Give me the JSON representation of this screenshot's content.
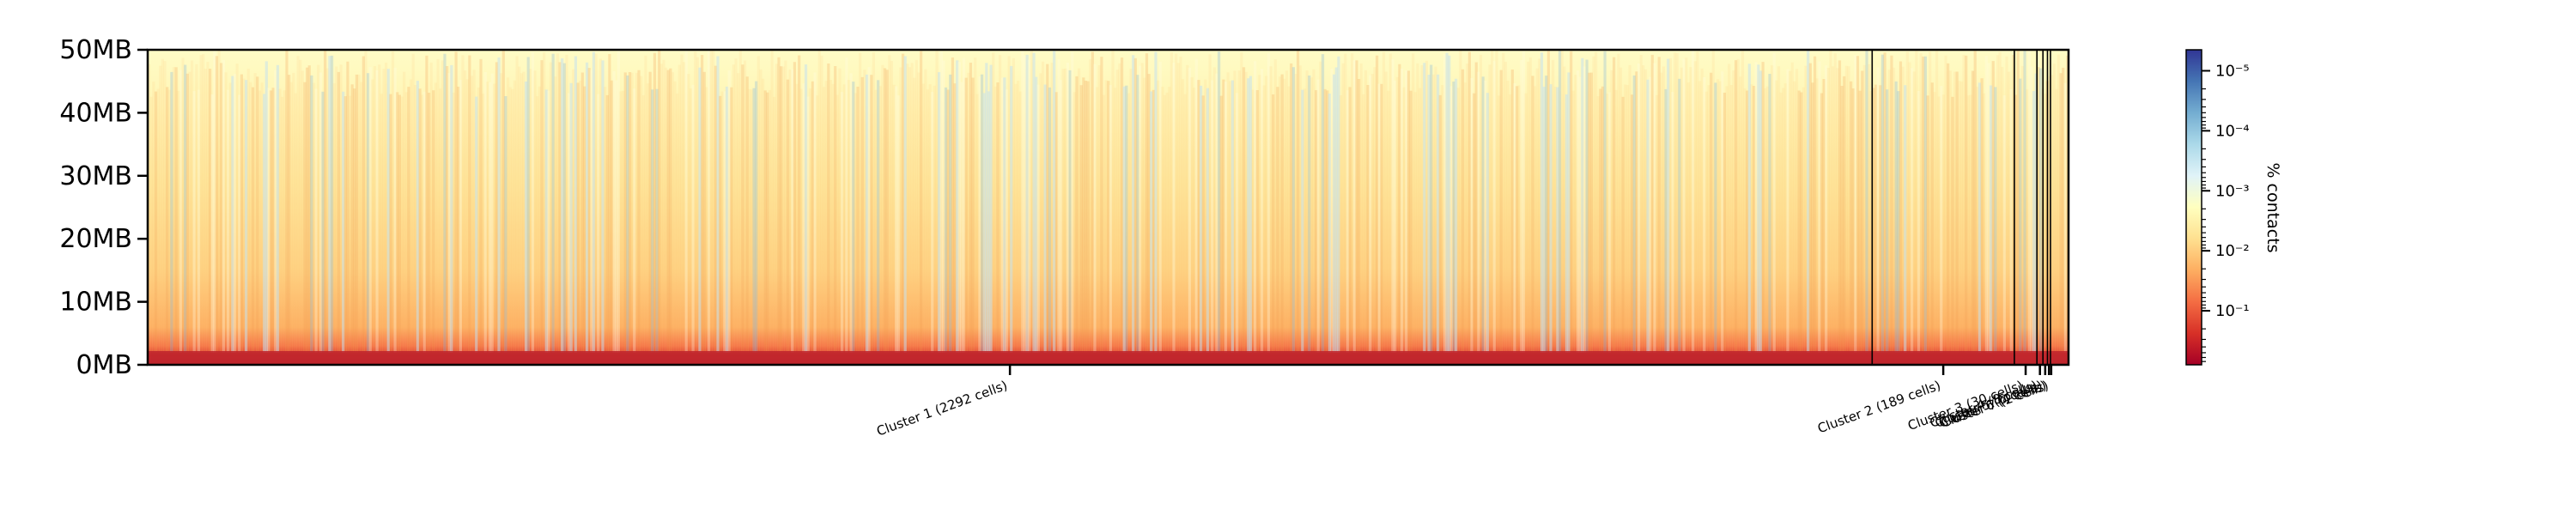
{
  "chart_data": {
    "type": "heatmap",
    "title": "",
    "xlabel": "",
    "ylabel": "",
    "y_ticks": [
      "0MB",
      "10MB",
      "20MB",
      "30MB",
      "40MB",
      "50MB"
    ],
    "y_tick_values_mb": [
      0,
      10,
      20,
      30,
      40,
      50
    ],
    "ylim_mb": [
      0,
      50
    ],
    "x_total_cells": 2553,
    "clusters": [
      {
        "label": "Cluster 1 (2292 cells)",
        "cells": 2292
      },
      {
        "label": "Cluster 2 (189 cells)",
        "cells": 189
      },
      {
        "label": "Cluster 3 (30 cells)",
        "cells": 30
      },
      {
        "label": "Cluster 4 (8 cells)",
        "cells": 8
      },
      {
        "label": "Cluster 5 (6 cells)",
        "cells": 6
      },
      {
        "label": "Cluster 6 (4 cells)",
        "cells": 4
      },
      {
        "label": "Cluster 7 (2 cells)",
        "cells": 2
      }
    ],
    "colorbar": {
      "title": "% contacts",
      "scale": "log",
      "tick_labels": [
        "10⁻⁵",
        "10⁻⁴",
        "10⁻³",
        "10⁻²",
        "10⁻¹"
      ],
      "tick_exponents": [
        -5,
        -4,
        -3,
        -2,
        -1
      ],
      "range_exponents": [
        -5.35,
        -0.1
      ],
      "colormap": "RdYlBu",
      "colors": [
        "#a50026",
        "#d73027",
        "#f46d43",
        "#fdae61",
        "#fee090",
        "#ffffbf",
        "#e0f3f8",
        "#abd9e9",
        "#74add1",
        "#4575b4",
        "#313695"
      ]
    },
    "grid": false,
    "legend": "none"
  }
}
